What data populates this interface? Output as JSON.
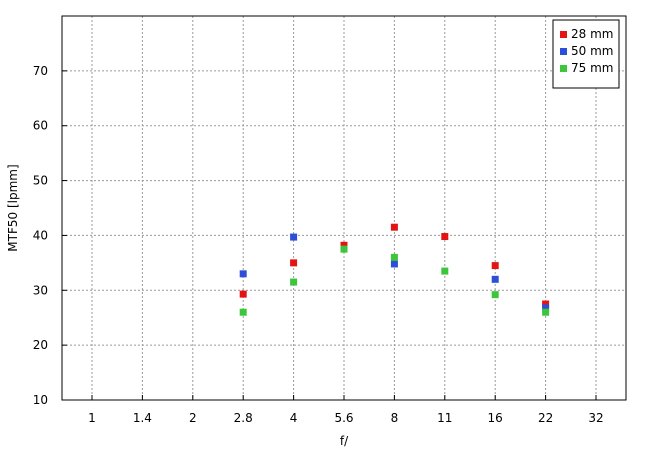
{
  "chart_data": {
    "type": "scatter",
    "title": "",
    "xlabel": "f/",
    "ylabel": "MTF50 [lpmm]",
    "x_categories": [
      "1",
      "1.4",
      "2",
      "2.8",
      "4",
      "5.6",
      "8",
      "11",
      "16",
      "22",
      "32"
    ],
    "ylim": [
      10,
      80
    ],
    "yticks": [
      10,
      20,
      30,
      40,
      50,
      60,
      70
    ],
    "grid": true,
    "legend_position": "top-right",
    "series": [
      {
        "name": "28 mm",
        "color": "#e41414",
        "points": [
          {
            "x": "2.8",
            "y": 29.3
          },
          {
            "x": "4",
            "y": 35.0
          },
          {
            "x": "5.6",
            "y": 38.2
          },
          {
            "x": "8",
            "y": 41.5
          },
          {
            "x": "11",
            "y": 39.8
          },
          {
            "x": "16",
            "y": 34.5
          },
          {
            "x": "22",
            "y": 27.5
          }
        ]
      },
      {
        "name": "50 mm",
        "color": "#2d4ed6",
        "points": [
          {
            "x": "2.8",
            "y": 33.0
          },
          {
            "x": "4",
            "y": 39.7
          },
          {
            "x": "8",
            "y": 34.8
          },
          {
            "x": "16",
            "y": 32.0
          },
          {
            "x": "22",
            "y": 26.8
          }
        ]
      },
      {
        "name": "75 mm",
        "color": "#3cc63c",
        "points": [
          {
            "x": "2.8",
            "y": 26.0
          },
          {
            "x": "4",
            "y": 31.5
          },
          {
            "x": "5.6",
            "y": 37.5
          },
          {
            "x": "8",
            "y": 36.0
          },
          {
            "x": "11",
            "y": 33.5
          },
          {
            "x": "16",
            "y": 29.2
          },
          {
            "x": "22",
            "y": 26.0
          }
        ]
      }
    ]
  }
}
